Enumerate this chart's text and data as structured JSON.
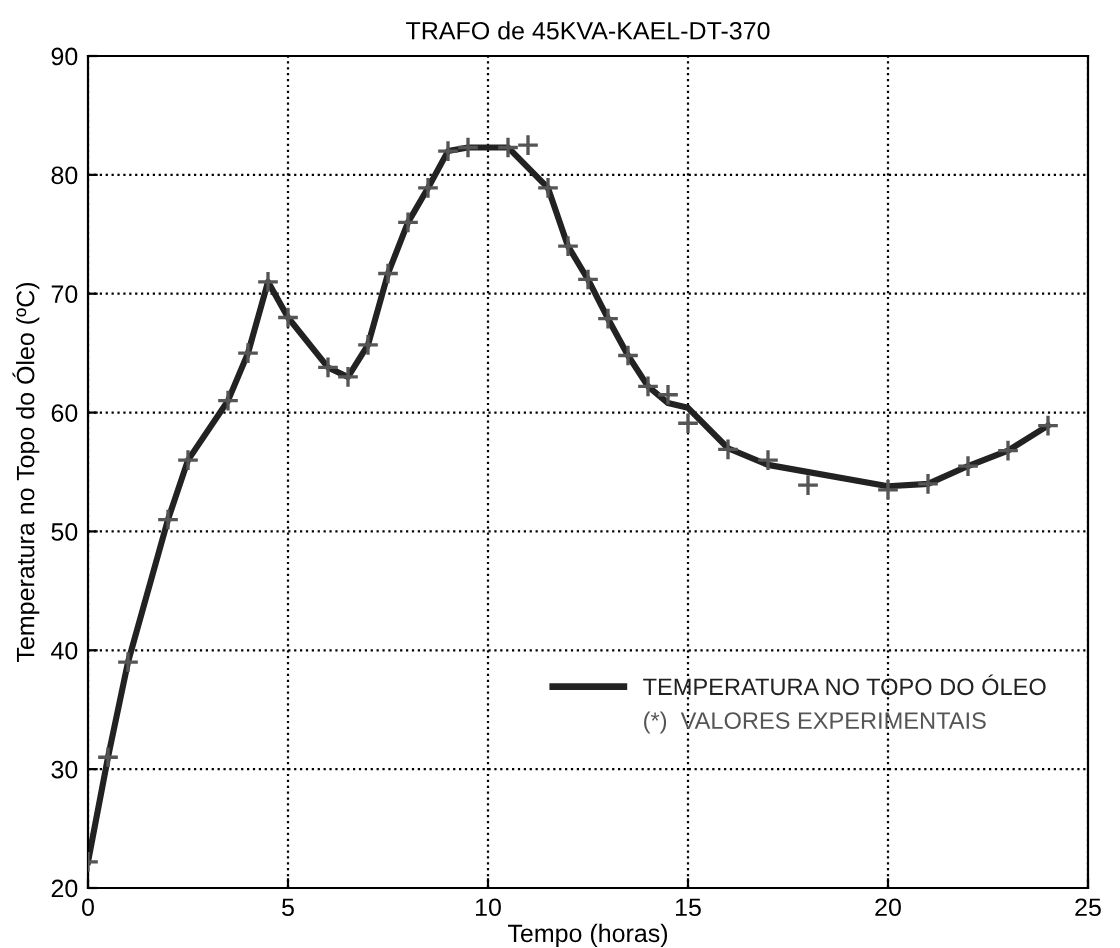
{
  "chart_data": {
    "type": "line",
    "title": "TRAFO de 45KVA-KAEL-DT-370",
    "xlabel": "Tempo (horas)",
    "ylabel": "Temperatura no Topo do Óleo (ºC)",
    "xlim": [
      0,
      25
    ],
    "ylim": [
      20,
      90
    ],
    "xticks": [
      0,
      5,
      10,
      15,
      20,
      25
    ],
    "yticks": [
      20,
      30,
      40,
      50,
      60,
      70,
      80,
      90
    ],
    "grid": true,
    "legend": "bottom right",
    "series": [
      {
        "name": "TEMPERATURA NO TOPO DO ÓLEO",
        "color": "#222222",
        "marker": "none",
        "line_style": "solid",
        "x": [
          0,
          0.5,
          1,
          2,
          2.5,
          3.5,
          4,
          4.5,
          5,
          6,
          6.5,
          7,
          7.5,
          8,
          8.5,
          9,
          9.5,
          10.5,
          11.5,
          12,
          12.5,
          13,
          13.5,
          14,
          14.5,
          15,
          16,
          17,
          20,
          21,
          22,
          23,
          24
        ],
        "values": [
          22.2,
          31,
          39,
          51,
          56,
          61,
          65,
          71,
          68,
          63.8,
          63,
          65.7,
          71.7,
          76,
          78.9,
          82,
          82.3,
          82.3,
          78.9,
          74,
          71.2,
          67.9,
          64.8,
          62.2,
          60.8,
          60.4,
          57,
          55.6,
          53.8,
          54,
          55.5,
          56.8,
          58.9
        ]
      },
      {
        "name": "(*)  VALORES EXPERIMENTAIS",
        "type": "scatter",
        "color": "#555555",
        "marker": "cross",
        "x": [
          0,
          0.5,
          1,
          2,
          2.5,
          3.5,
          4,
          4.5,
          5,
          6,
          6.5,
          7,
          7.5,
          8,
          8.5,
          9,
          9.5,
          10.5,
          11,
          11.5,
          12,
          12.5,
          13,
          13.5,
          14,
          14.5,
          15,
          16,
          17,
          18,
          20,
          21,
          22,
          23,
          24
        ],
        "values": [
          22.2,
          31,
          39,
          51,
          56,
          61,
          65,
          71,
          68,
          63.8,
          63,
          65.7,
          71.7,
          76,
          78.9,
          82,
          82.3,
          82.3,
          82.5,
          78.9,
          74,
          71.2,
          67.9,
          64.8,
          62.2,
          61.5,
          59.1,
          56.9,
          56,
          53.9,
          53.5,
          54,
          55.5,
          56.8,
          58.9
        ]
      }
    ]
  }
}
